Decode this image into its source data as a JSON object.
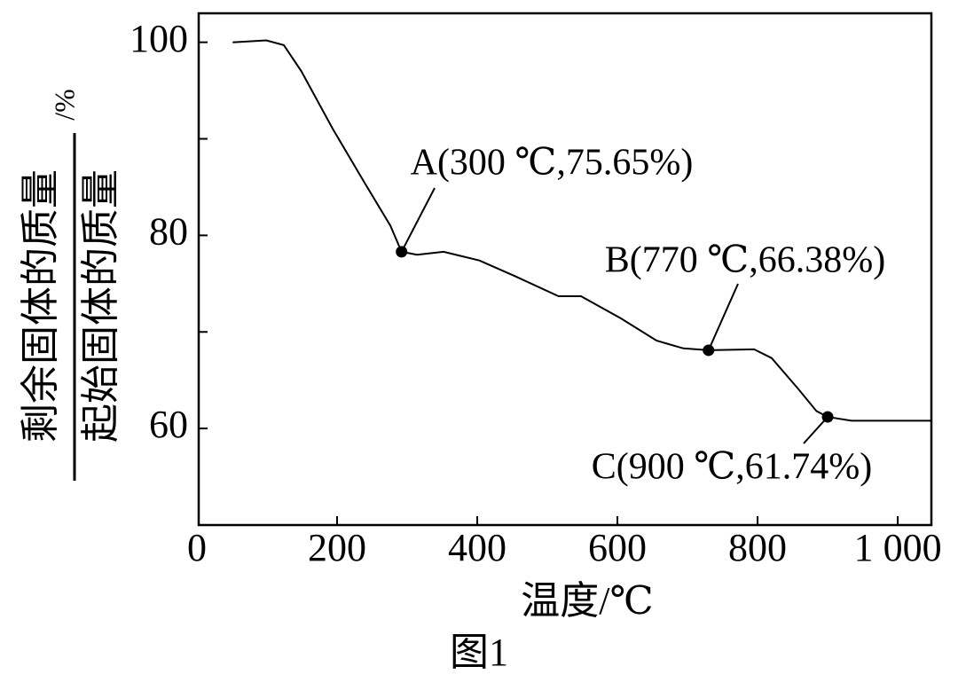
{
  "chart_data": {
    "type": "line",
    "x_label": "温度/℃",
    "y_label_numerator": "剩余固体的质量",
    "y_label_denominator": "起始固体的质量",
    "y_label_unit": "/%",
    "caption": "图1",
    "xlim": [
      0,
      1048
    ],
    "ylim": [
      50,
      103
    ],
    "xticks": [
      0,
      200,
      400,
      600,
      800,
      {
        "value": 1000,
        "label": "1 000"
      }
    ],
    "yticks": [
      60,
      80,
      100
    ],
    "minor_yticks": [
      70,
      90
    ],
    "series": [
      {
        "color": "#000000",
        "x": [
          51,
          99,
          124,
          149,
          194,
          238,
          276,
          292,
          314,
          352,
          403,
          453,
          516,
          548,
          605,
          656,
          694,
          730,
          795,
          820,
          858,
          884,
          900,
          934,
          1048
        ],
        "values": [
          100,
          100.2,
          99.7,
          97,
          91,
          85.6,
          81,
          78.3,
          78,
          78.3,
          77.4,
          75.8,
          73.7,
          73.7,
          71.4,
          69.1,
          68.3,
          68.1,
          68.2,
          67.3,
          64.1,
          61.8,
          61.2,
          60.8,
          60.8
        ]
      }
    ],
    "annotations": [
      {
        "label": "A(300 ℃,75.65%)",
        "x": 292,
        "y": 78.3
      },
      {
        "label": "B(770 ℃,66.38%)",
        "x": 730,
        "y": 68.1
      },
      {
        "label": "C(900 ℃,61.74%)",
        "x": 900,
        "y": 61.2
      }
    ]
  }
}
